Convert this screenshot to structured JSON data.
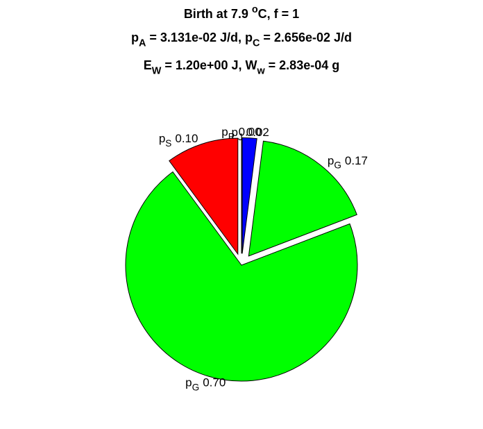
{
  "chart_data": {
    "type": "pie",
    "title": [
      [
        {
          "text": "Birth at 7.9 "
        },
        {
          "text": "o",
          "shift": "sup"
        },
        {
          "text": "C, f = 1"
        }
      ],
      [
        {
          "text": "p"
        },
        {
          "text": "A",
          "shift": "sub"
        },
        {
          "text": " = 3.131e-02 J/d, p"
        },
        {
          "text": "C",
          "shift": "sub"
        },
        {
          "text": " = 2.656e-02 J/d"
        }
      ],
      [
        {
          "text": "E"
        },
        {
          "text": "W",
          "shift": "sub"
        },
        {
          "text": " = 1.20e+00 J, W"
        },
        {
          "text": "w",
          "shift": "sub"
        },
        {
          "text": " = 2.83e-04 g"
        }
      ]
    ],
    "categories": [
      [
        {
          "text": "p"
        },
        {
          "text": "R",
          "shift": "sub"
        }
      ],
      [
        {
          "text": "p"
        },
        {
          "text": "J",
          "shift": "sub"
        }
      ],
      [
        {
          "text": "p"
        },
        {
          "text": "G",
          "shift": "sub"
        }
      ],
      [
        {
          "text": "p"
        },
        {
          "text": "G",
          "shift": "sub"
        }
      ],
      [
        {
          "text": "p"
        },
        {
          "text": "S",
          "shift": "sub"
        }
      ]
    ],
    "values": [
      0,
      0.02,
      0.17,
      0.7,
      0.1
    ],
    "value_labels": [
      "0.00",
      "0.02",
      "0.17",
      "0.70",
      "0.10"
    ],
    "colors": [
      "#0000ff",
      "#0000ff",
      "#00ff00",
      "#00ff00",
      "#ff0000"
    ],
    "explode": [
      true,
      true,
      true,
      false,
      true
    ],
    "start": "top",
    "direction": "clockwise"
  }
}
